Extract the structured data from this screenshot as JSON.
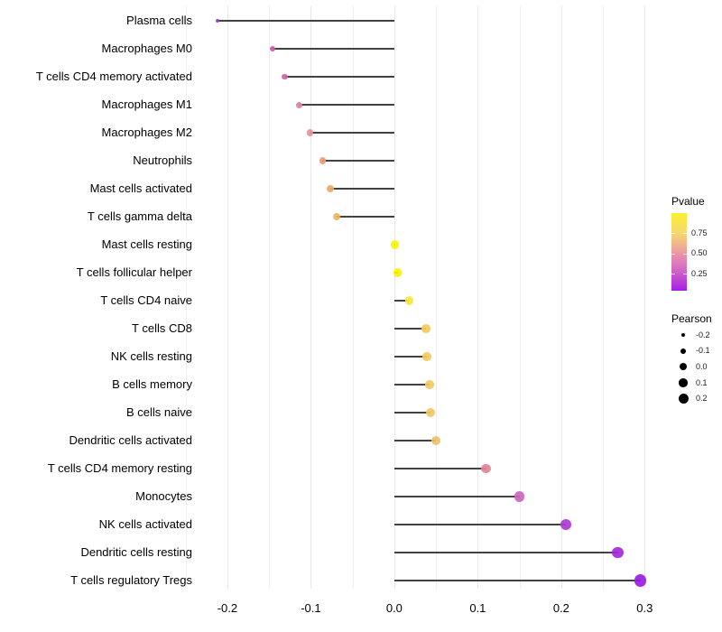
{
  "chart_data": {
    "type": "lollipop",
    "title": "",
    "xlabel": "",
    "ylabel": "",
    "xlim": [
      -0.2605,
      0.3245
    ],
    "grid": true,
    "gridline_values": [
      -0.25,
      -0.2,
      -0.15,
      -0.1,
      -0.05,
      0.0,
      0.05,
      0.1,
      0.15,
      0.2,
      0.25,
      0.3
    ],
    "x_ticks": [
      {
        "label": "-0.2",
        "value": -0.2
      },
      {
        "label": "-0.1",
        "value": -0.1
      },
      {
        "label": "0.0",
        "value": 0.0
      },
      {
        "label": "0.1",
        "value": 0.1
      },
      {
        "label": "0.2",
        "value": 0.2
      },
      {
        "label": "0.3",
        "value": 0.3
      }
    ],
    "rows": [
      {
        "label": "Plasma cells",
        "pearson": -0.212,
        "color": "#9b3fc4"
      },
      {
        "label": "Macrophages M0",
        "pearson": -0.146,
        "color": "#c45aa9"
      },
      {
        "label": "T cells CD4 memory activated",
        "pearson": -0.131,
        "color": "#ca67ab"
      },
      {
        "label": "Macrophages M1",
        "pearson": -0.114,
        "color": "#d884a2"
      },
      {
        "label": "Macrophages M2",
        "pearson": -0.101,
        "color": "#e2939b"
      },
      {
        "label": "Neutrophils",
        "pearson": -0.086,
        "color": "#e99c7c"
      },
      {
        "label": "Mast cells activated",
        "pearson": -0.077,
        "color": "#efa96c"
      },
      {
        "label": "T cells gamma delta",
        "pearson": -0.069,
        "color": "#f1b164"
      },
      {
        "label": "Mast cells resting",
        "pearson": 0.001,
        "color": "#fcf303"
      },
      {
        "label": "T cells follicular helper",
        "pearson": 0.004,
        "color": "#fcf303"
      },
      {
        "label": "T cells CD4 naive",
        "pearson": 0.018,
        "color": "#fae73c"
      },
      {
        "label": "T cells CD8",
        "pearson": 0.038,
        "color": "#f3cb59"
      },
      {
        "label": "NK cells resting",
        "pearson": 0.039,
        "color": "#f3ca5d"
      },
      {
        "label": "B cells memory",
        "pearson": 0.042,
        "color": "#f3c961"
      },
      {
        "label": "B cells naive",
        "pearson": 0.043,
        "color": "#f2c765"
      },
      {
        "label": "Dendritic cells activated",
        "pearson": 0.05,
        "color": "#f0c06c"
      },
      {
        "label": "T cells CD4 memory resting",
        "pearson": 0.11,
        "color": "#df8497"
      },
      {
        "label": "Monocytes",
        "pearson": 0.15,
        "color": "#cb65bf"
      },
      {
        "label": "NK cells activated",
        "pearson": 0.206,
        "color": "#ac39d3"
      },
      {
        "label": "Dendritic cells resting",
        "pearson": 0.268,
        "color": "#a528dd"
      },
      {
        "label": "T cells regulatory  Tregs",
        "pearson": 0.295,
        "color": "#9c1ce4"
      }
    ],
    "legend_pvalue": {
      "title": "Pvalue",
      "tick_labels": [
        "0.75",
        "0.50",
        "0.25"
      ],
      "gradient_colors": [
        "#faf32b",
        "#f8e44f",
        "#f6d96f",
        "#f2bc85",
        "#ec9b9f",
        "#e07fb8",
        "#cf64c8",
        "#bb41d6",
        "#a31fe2"
      ]
    },
    "legend_pearson": {
      "title": "Pearson",
      "items": [
        {
          "label": "-0.2",
          "value": -0.2
        },
        {
          "label": "-0.1",
          "value": -0.1
        },
        {
          "label": "0.0",
          "value": 0.0
        },
        {
          "label": "0.1",
          "value": 0.1
        },
        {
          "label": "0.2",
          "value": 0.2
        }
      ]
    },
    "stem_color": "#424242"
  }
}
